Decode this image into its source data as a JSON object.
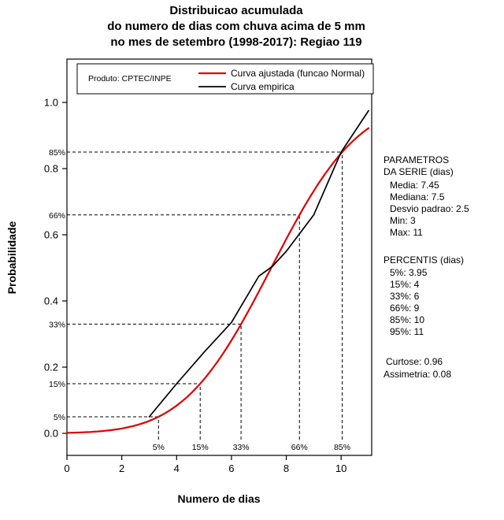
{
  "chart_data": {
    "type": "line",
    "title": [
      "Distribuicao acumulada",
      "do numero de dias com chuva acima de 5 mm",
      "no mes de setembro (1998-2017): Regiao 119"
    ],
    "xlabel": "Numero de dias",
    "ylabel": "Probabilidade",
    "xlim": [
      0,
      11
    ],
    "ylim": [
      0,
      1
    ],
    "x_ticks": [
      0,
      2,
      4,
      6,
      8,
      10
    ],
    "x_tick_labels": [
      "0",
      "2",
      "4",
      "6",
      "8",
      "10"
    ],
    "y_ticks": [
      0.0,
      0.2,
      0.4,
      0.6,
      0.8,
      1.0
    ],
    "y_tick_labels": [
      "0.0",
      "0.2",
      "0.4",
      "0.6",
      "0.8",
      "1.0"
    ],
    "grid": false,
    "legend_position": "top-inside",
    "series": [
      {
        "name": "Curva ajustada (funcao Normal)",
        "color": "#dd0000",
        "kind": "normal_cdf",
        "mean": 7.45,
        "sd": 2.5,
        "x_range": [
          0,
          11
        ]
      },
      {
        "name": "Curva empirica",
        "color": "#000000",
        "kind": "points",
        "x": [
          3,
          4,
          5,
          6,
          7,
          7.5,
          8,
          9,
          10,
          11
        ],
        "y": [
          0.05,
          0.15,
          0.245,
          0.335,
          0.475,
          0.505,
          0.55,
          0.66,
          0.85,
          0.975
        ]
      }
    ],
    "percentile_guides": [
      {
        "label": "5%",
        "p": 0.05,
        "x": 3.34
      },
      {
        "label": "15%",
        "p": 0.15,
        "x": 4.86
      },
      {
        "label": "33%",
        "p": 0.33,
        "x": 6.35
      },
      {
        "label": "66%",
        "p": 0.66,
        "x": 8.48
      },
      {
        "label": "85%",
        "p": 0.85,
        "x": 10.04
      }
    ]
  },
  "legend": {
    "produto": "Produto: CPTEC/INPE",
    "items": [
      {
        "label": "Curva ajustada (funcao Normal)",
        "color": "#dd0000"
      },
      {
        "label": "Curva empirica",
        "color": "#000000"
      }
    ]
  },
  "side_panel": {
    "parametros_title_1": "PARAMETROS",
    "parametros_title_2": "DA SERIE (dias)",
    "parametros": [
      "Media: 7.45",
      "Mediana: 7.5",
      "Desvio padrao: 2.5",
      "Min: 3",
      "Max: 11"
    ],
    "percentis_title": "PERCENTIS (dias)",
    "percentis": [
      "5%: 3.95",
      "15%: 4",
      "33%: 6",
      "66%: 9",
      "85%: 10",
      "95%: 11"
    ],
    "curtose": "Curtose: 0.96",
    "assimetria": "Assimetria: 0.08"
  }
}
